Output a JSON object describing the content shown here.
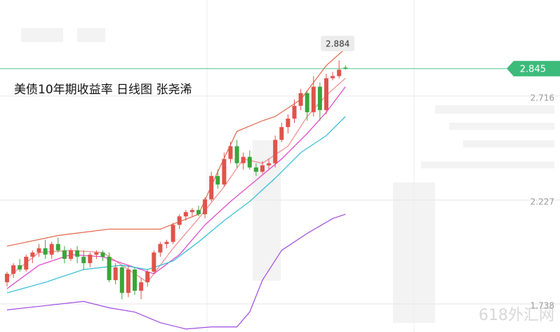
{
  "chart_data": {
    "type": "candlestick",
    "title": "美债10年期收益率  日线图 张尧浠",
    "watermark": "618外汇网",
    "ylim": [
      1.606,
      3.168
    ],
    "yticks": [
      2.716,
      2.227,
      1.738
    ],
    "grid": true,
    "up_color": "#e0534a",
    "down_color": "#3aa53a",
    "last_price": 2.845,
    "last_price_color": "#3dbb7b",
    "max_label": 2.884,
    "open": [
      1.84,
      1.88,
      1.92,
      1.9,
      1.96,
      1.98,
      2.0,
      1.97,
      2.02,
      1.99,
      1.95,
      1.99,
      1.96,
      1.93,
      1.97,
      1.98,
      1.96,
      1.85,
      1.91,
      1.79,
      1.9,
      1.8,
      1.84,
      1.89,
      1.98,
      2.02,
      2.03,
      2.11,
      2.15,
      2.17,
      2.18,
      2.16,
      2.23,
      2.34,
      2.3,
      2.42,
      2.48,
      2.4,
      2.43,
      2.38,
      2.36,
      2.39,
      2.4,
      2.51,
      2.57,
      2.61,
      2.67,
      2.73,
      2.64,
      2.76,
      2.65,
      2.8,
      2.81,
      2.85
    ],
    "high": [
      1.89,
      1.93,
      1.95,
      1.97,
      1.99,
      2.02,
      2.04,
      2.03,
      2.05,
      2.01,
      2.0,
      2.01,
      1.99,
      1.98,
      1.99,
      1.99,
      1.98,
      1.93,
      1.92,
      1.92,
      1.91,
      1.86,
      1.9,
      1.99,
      2.03,
      2.04,
      2.12,
      2.16,
      2.18,
      2.19,
      2.2,
      2.24,
      2.36,
      2.37,
      2.45,
      2.5,
      2.51,
      2.45,
      2.46,
      2.4,
      2.41,
      2.42,
      2.53,
      2.59,
      2.63,
      2.7,
      2.75,
      2.74,
      2.81,
      2.78,
      2.82,
      2.83,
      2.884,
      2.86
    ],
    "low": [
      1.82,
      1.86,
      1.89,
      1.89,
      1.93,
      1.96,
      1.95,
      1.95,
      1.98,
      1.93,
      1.94,
      1.93,
      1.9,
      1.91,
      1.95,
      1.94,
      1.84,
      1.83,
      1.76,
      1.77,
      1.78,
      1.76,
      1.82,
      1.88,
      1.96,
      2.0,
      2.02,
      2.09,
      2.13,
      2.15,
      2.15,
      2.14,
      2.22,
      2.28,
      2.29,
      2.4,
      2.38,
      2.37,
      2.37,
      2.34,
      2.35,
      2.37,
      2.38,
      2.5,
      2.54,
      2.59,
      2.65,
      2.6,
      2.62,
      2.6,
      2.63,
      2.79,
      2.8,
      2.84
    ],
    "close": [
      1.88,
      1.92,
      1.9,
      1.96,
      1.98,
      2.0,
      1.97,
      2.02,
      1.99,
      1.95,
      1.99,
      1.96,
      1.93,
      1.97,
      1.98,
      1.96,
      1.85,
      1.91,
      1.79,
      1.9,
      1.8,
      1.84,
      1.89,
      1.98,
      2.02,
      2.03,
      2.11,
      2.15,
      2.17,
      2.18,
      2.16,
      2.23,
      2.34,
      2.3,
      2.42,
      2.48,
      2.4,
      2.43,
      2.38,
      2.36,
      2.39,
      2.4,
      2.51,
      2.57,
      2.61,
      2.67,
      2.73,
      2.64,
      2.76,
      2.65,
      2.8,
      2.81,
      2.84,
      2.845
    ],
    "lines": [
      {
        "color": "#e2664a",
        "x": [
          0,
          8,
          16,
          24,
          30,
          33,
          36,
          40,
          42,
          46,
          50,
          53
        ],
        "values": [
          2.01,
          2.06,
          2.09,
          2.09,
          2.16,
          2.36,
          2.55,
          2.6,
          2.62,
          2.7,
          2.86,
          2.94
        ]
      },
      {
        "color": "#f08a8a",
        "x": [
          0,
          5,
          10,
          15,
          18,
          22,
          26,
          30,
          34,
          37,
          40,
          44,
          47,
          50,
          53
        ],
        "values": [
          1.86,
          1.98,
          1.99,
          1.98,
          1.92,
          1.84,
          2.0,
          2.14,
          2.29,
          2.42,
          2.4,
          2.48,
          2.62,
          2.72,
          2.8
        ]
      },
      {
        "color": "#e040c8",
        "x": [
          0,
          5,
          10,
          15,
          19,
          23,
          27,
          31,
          35,
          39,
          43,
          47,
          50,
          53
        ],
        "values": [
          1.81,
          1.92,
          1.97,
          1.96,
          1.92,
          1.88,
          1.97,
          2.11,
          2.22,
          2.32,
          2.42,
          2.54,
          2.64,
          2.76
        ]
      },
      {
        "color": "#2bbbd8",
        "x": [
          0,
          6,
          12,
          18,
          22,
          26,
          30,
          34,
          38,
          42,
          46,
          50,
          53
        ],
        "values": [
          1.79,
          1.84,
          1.9,
          1.92,
          1.9,
          1.94,
          2.03,
          2.13,
          2.22,
          2.33,
          2.45,
          2.53,
          2.62
        ]
      },
      {
        "color": "#a04be0",
        "x": [
          0,
          6,
          12,
          16,
          20,
          24,
          28,
          32,
          36,
          38,
          40,
          43,
          47,
          51,
          53
        ],
        "values": [
          1.71,
          1.73,
          1.75,
          1.72,
          1.7,
          1.65,
          1.62,
          1.63,
          1.63,
          1.7,
          1.85,
          1.99,
          2.07,
          2.14,
          2.16
        ]
      }
    ]
  }
}
